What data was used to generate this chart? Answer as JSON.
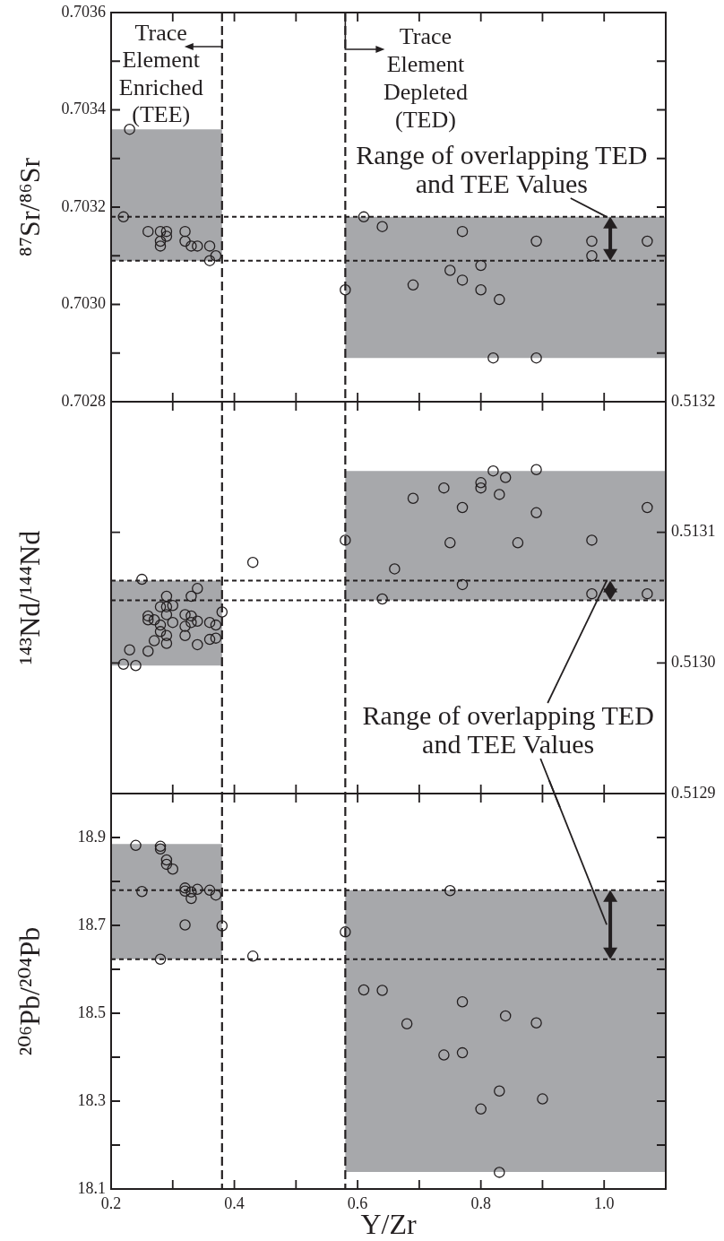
{
  "chart_data": [
    {
      "type": "scatter",
      "ylabel": "⁸⁷Sr/⁸⁶Sr",
      "marker": "circle",
      "grid": false,
      "tick_labels": "y",
      "xlim": [
        0.2,
        1.1
      ],
      "xticks": [
        {
          "value": 0.2,
          "label": null
        },
        {
          "value": 0.3,
          "label": null
        },
        {
          "value": 0.4,
          "label": null
        },
        {
          "value": 0.5,
          "label": null
        },
        {
          "value": 0.6,
          "label": null
        },
        {
          "value": 0.7,
          "label": null
        },
        {
          "value": 0.8,
          "label": null
        },
        {
          "value": 0.9,
          "label": null
        },
        {
          "value": 1,
          "label": null
        }
      ],
      "ylim": [
        0.7028,
        0.7036
      ],
      "yticks": [
        0.7028,
        {
          "value": 0.7029,
          "label": null
        },
        {
          "value": 0.703,
          "label": "0.7030"
        },
        {
          "value": 0.7031,
          "label": null
        },
        0.7032,
        {
          "value": 0.7033,
          "label": null
        },
        0.7034,
        {
          "value": 0.7035,
          "label": null
        },
        0.7036
      ],
      "series": [
        {
          "color": "#231f20",
          "x": [
            0.23,
            0.22,
            0.26,
            0.28,
            0.29,
            0.28,
            0.29,
            0.28,
            0.32,
            0.32,
            0.33,
            0.34,
            0.36,
            0.37,
            0.36,
            0.58,
            0.61,
            0.64,
            0.77,
            0.89,
            0.98,
            1.07,
            0.98,
            0.8,
            0.75,
            0.77,
            0.69,
            0.8,
            0.83,
            0.82,
            0.89
          ],
          "values": [
            0.70336,
            0.70318,
            0.70315,
            0.70315,
            0.70315,
            0.70313,
            0.70314,
            0.70312,
            0.70315,
            0.70313,
            0.70312,
            0.70312,
            0.70312,
            0.7031,
            0.70309,
            0.70303,
            0.70318,
            0.70316,
            0.70315,
            0.70313,
            0.70313,
            0.70313,
            0.7031,
            0.70308,
            0.70307,
            0.70305,
            0.70304,
            0.70303,
            0.70301,
            0.70289,
            0.70289
          ]
        }
      ],
      "bands": [
        {
          "axis": "y",
          "from": 0.70309,
          "to": 0.70336,
          "color": "#a7a8ab"
        },
        {
          "axis": "y",
          "from": 0.70289,
          "to": 0.70318,
          "color": "#a7a8ab"
        }
      ],
      "ref_lines": [
        {
          "axis": "x",
          "value": 0.38,
          "line_style": "dashed"
        },
        {
          "axis": "x",
          "value": 0.58,
          "line_style": "dashed"
        },
        {
          "axis": "y",
          "value": 0.70318,
          "line_style": "dotted"
        },
        {
          "axis": "y",
          "value": 0.70309,
          "line_style": "dotted"
        }
      ],
      "annotations": [
        "Trace Element Enriched (TEE)",
        "Trace Element Depleted (TED)",
        {
          "text": "Range of overlapping TED and TEE Values",
          "x": 1.01,
          "y": 0.70318
        }
      ]
    },
    {
      "type": "scatter",
      "ylabel": "¹⁴³Nd/¹⁴⁴Nd",
      "marker": "circle",
      "grid": false,
      "tick_labels": "y",
      "xlim": [
        0.2,
        1.1
      ],
      "xticks": [
        {
          "value": 0.2,
          "label": null
        },
        {
          "value": 0.3,
          "label": null
        },
        {
          "value": 0.4,
          "label": null
        },
        {
          "value": 0.5,
          "label": null
        },
        {
          "value": 0.6,
          "label": null
        },
        {
          "value": 0.7,
          "label": null
        },
        {
          "value": 0.8,
          "label": null
        },
        {
          "value": 0.9,
          "label": null
        },
        {
          "value": 1,
          "label": null
        }
      ],
      "ylim": [
        0.5129,
        0.5132
      ],
      "yticks": [
        0.5129,
        {
          "value": 0.513,
          "label": "0.5130"
        },
        0.5131,
        0.5132
      ],
      "series": [
        {
          "color": "#231f20",
          "x": [
            0.25,
            0.29,
            0.34,
            0.33,
            0.28,
            0.29,
            0.3,
            0.26,
            0.26,
            0.27,
            0.29,
            0.32,
            0.33,
            0.34,
            0.3,
            0.33,
            0.36,
            0.37,
            0.38,
            0.28,
            0.28,
            0.32,
            0.32,
            0.29,
            0.29,
            0.27,
            0.34,
            0.36,
            0.37,
            0.26,
            0.23,
            0.22,
            0.24,
            0.43,
            0.58,
            0.82,
            0.89,
            0.84,
            0.8,
            0.8,
            0.74,
            0.83,
            0.69,
            0.77,
            0.89,
            1.07,
            0.75,
            0.86,
            0.98,
            0.66,
            0.77,
            0.64,
            0.98,
            1.07
          ],
          "values": [
            0.513064,
            0.513051,
            0.513057,
            0.513051,
            0.513043,
            0.513043,
            0.513044,
            0.513036,
            0.513033,
            0.513033,
            0.513037,
            0.513037,
            0.513036,
            0.513032,
            0.513031,
            0.513031,
            0.513031,
            0.513029,
            0.513039,
            0.513029,
            0.513024,
            0.513028,
            0.513021,
            0.513021,
            0.513015,
            0.513017,
            0.513014,
            0.513018,
            0.513019,
            0.513009,
            0.51301,
            0.512999,
            0.512998,
            0.513077,
            0.513094,
            0.513147,
            0.513148,
            0.513142,
            0.513138,
            0.513134,
            0.513134,
            0.513129,
            0.513126,
            0.513119,
            0.513115,
            0.513119,
            0.513092,
            0.513092,
            0.513094,
            0.513072,
            0.51306,
            0.513049,
            0.513053,
            0.513053
          ]
        }
      ],
      "bands": [
        {
          "axis": "y",
          "from": 0.512998,
          "to": 0.513063,
          "color": "#a7a8ab"
        },
        {
          "axis": "y",
          "from": 0.513048,
          "to": 0.513147,
          "color": "#a7a8ab"
        }
      ],
      "ref_lines": [
        {
          "axis": "x",
          "value": 0.38,
          "line_style": "dashed"
        },
        {
          "axis": "x",
          "value": 0.58,
          "line_style": "dashed"
        },
        {
          "axis": "y",
          "value": 0.513063,
          "line_style": "dotted"
        },
        {
          "axis": "y",
          "value": 0.513048,
          "line_style": "dotted"
        }
      ],
      "annotations": [
        {
          "text": "Range of overlapping TED and TEE Values",
          "x": 1.01,
          "y": 0.513063
        }
      ]
    },
    {
      "type": "scatter",
      "ylabel": "²⁰⁶Pb/²⁰⁴Pb",
      "xlabel": "Y/Zr",
      "marker": "circle",
      "grid": false,
      "xlim": [
        0.2,
        1.1
      ],
      "xticks": [
        0.2,
        {
          "value": 0.3,
          "label": null
        },
        0.4,
        {
          "value": 0.5,
          "label": null
        },
        0.6,
        {
          "value": 0.7,
          "label": null
        },
        0.8,
        {
          "value": 0.9,
          "label": null
        },
        {
          "value": 1,
          "label": "1.0"
        }
      ],
      "ylim": [
        18.1,
        19.0
      ],
      "yticks": [
        18.1,
        {
          "value": 18.2,
          "label": null
        },
        18.3,
        {
          "value": 18.4,
          "label": null
        },
        18.5,
        {
          "value": 18.6,
          "label": null
        },
        18.7,
        {
          "value": 18.8,
          "label": null
        },
        18.9
      ],
      "series": [
        {
          "color": "#231f20",
          "x": [
            0.24,
            0.28,
            0.28,
            0.29,
            0.29,
            0.3,
            0.25,
            0.32,
            0.32,
            0.33,
            0.33,
            0.34,
            0.36,
            0.37,
            0.32,
            0.38,
            0.28,
            0.43,
            0.58,
            0.61,
            0.75,
            0.64,
            0.77,
            0.68,
            0.84,
            0.89,
            0.74,
            0.77,
            0.83,
            0.9,
            0.8,
            0.83
          ],
          "values": [
            18.882,
            18.88,
            18.874,
            18.849,
            18.839,
            18.828,
            18.777,
            18.785,
            18.778,
            18.776,
            18.761,
            18.782,
            18.78,
            18.769,
            18.701,
            18.699,
            18.623,
            18.63,
            18.685,
            18.553,
            18.779,
            18.552,
            18.526,
            18.476,
            18.494,
            18.478,
            18.405,
            18.41,
            18.323,
            18.305,
            18.282,
            18.138
          ]
        }
      ],
      "bands": [
        {
          "axis": "y",
          "from": 18.623,
          "to": 18.885,
          "color": "#a7a8ab"
        },
        {
          "axis": "y",
          "from": 18.139,
          "to": 18.78,
          "color": "#a7a8ab"
        }
      ],
      "ref_lines": [
        {
          "axis": "x",
          "value": 0.38,
          "line_style": "dashed"
        },
        {
          "axis": "x",
          "value": 0.58,
          "line_style": "dashed"
        },
        {
          "axis": "y",
          "value": 18.78,
          "line_style": "dotted"
        },
        {
          "axis": "y",
          "value": 18.623,
          "line_style": "dotted"
        }
      ]
    }
  ]
}
